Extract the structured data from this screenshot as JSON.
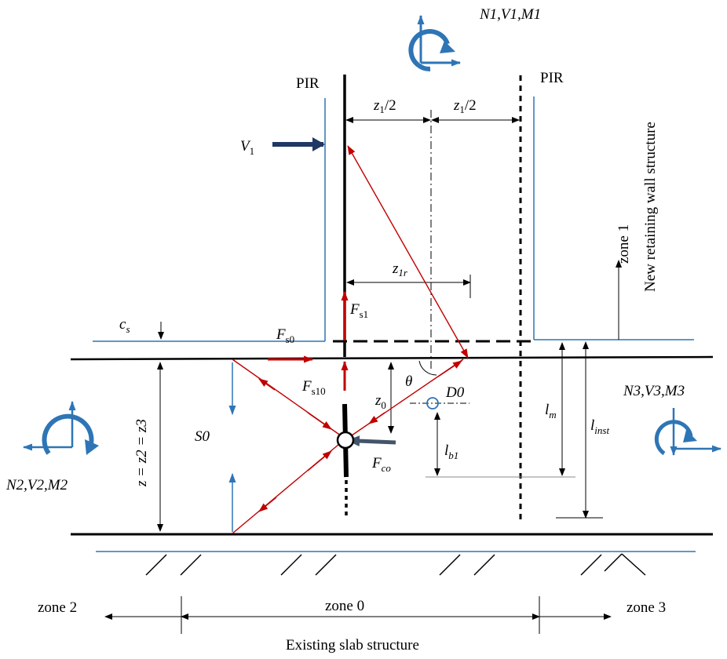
{
  "labels": {
    "pir_left": "PIR",
    "pir_right": "PIR",
    "load_top": "N1,V1,M1",
    "load_left": "N2,V2,M2",
    "load_right": "N3,V3,M3",
    "V1": {
      "main": "V",
      "sub": "1"
    },
    "half_left": {
      "main": "z",
      "sub": "1",
      "suffix": "/2"
    },
    "half_right": {
      "main": "z",
      "sub": "1",
      "suffix": "/2"
    },
    "z1r": {
      "main": "z",
      "sub": "1r"
    },
    "Fs1": {
      "main": "F",
      "sub": "s1"
    },
    "Fs0": {
      "main": "F",
      "sub": "s0"
    },
    "Fs10": {
      "main": "F",
      "sub": "s10"
    },
    "Fco": {
      "main": "F",
      "sub": "co"
    },
    "cs": {
      "main": "c",
      "sub": "s"
    },
    "S0": "S0",
    "z0": {
      "main": "z",
      "sub": "0"
    },
    "theta": "θ",
    "D0": "D0",
    "lb1": {
      "main": "l",
      "sub": "b1"
    },
    "lm": {
      "main": "l",
      "sub": "m"
    },
    "linst": {
      "main": "l",
      "sub": "inst"
    },
    "z_eq": "z = z2 = z3",
    "zone1": "zone 1",
    "new_wall": "New retaining wall structure",
    "zone0": "zone 0",
    "zone2": "zone 2",
    "zone3": "zone 3",
    "existing_slab": "Existing slab structure"
  },
  "colors": {
    "tie": "#c00000",
    "strut": "#c00000",
    "wall": "#2e75b6",
    "load": "#2e75b6",
    "v1_arrow": "#1f3864",
    "fco_arrow": "#44546a",
    "black": "#000000"
  }
}
